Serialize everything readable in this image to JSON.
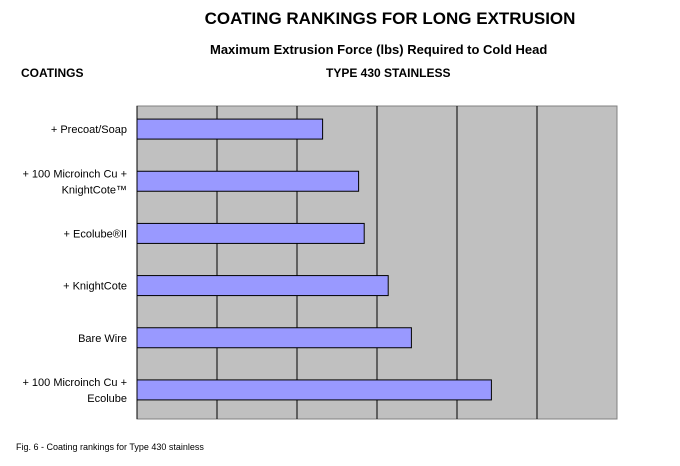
{
  "chart_data": {
    "type": "bar",
    "orientation": "horizontal",
    "title": "COATING RANKINGS FOR LONG EXTRUSION",
    "subtitle": "Maximum Extrusion Force (lbs) Required to Cold Head",
    "ylabel": "COATINGS",
    "series": [
      {
        "name": "TYPE 430 STAINLESS",
        "color": "#9999FF",
        "values": [
          2.32,
          2.77,
          2.84,
          3.14,
          3.43,
          4.43
        ]
      }
    ],
    "categories": [
      [
        "+ Precoat/Soap"
      ],
      [
        "+ 100 Microinch Cu +",
        "KnightCote™"
      ],
      [
        "+ Ecolube®II"
      ],
      [
        "+ KnightCote"
      ],
      [
        "Bare Wire"
      ],
      [
        "+ 100 Microinch Cu +",
        "Ecolube"
      ]
    ],
    "xlim": [
      0,
      6
    ],
    "x_tick_labels_shown": false,
    "grid": "vertical",
    "plot_background": "#C0C0C0",
    "caption": "Fig. 6 - Coating rankings for Type 430 stainless"
  }
}
